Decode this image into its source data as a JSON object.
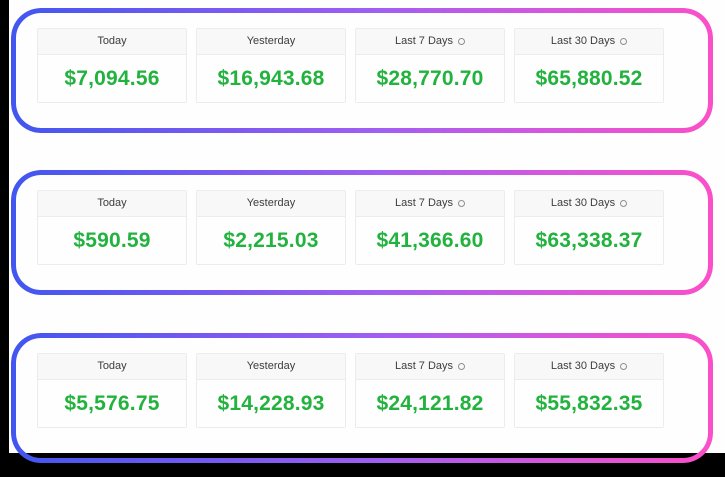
{
  "colors": {
    "frame_bg": "#000000",
    "content_bg": "#fefefe",
    "border_gradient_start": "#4156f0",
    "border_gradient_mid": "#a05ef3",
    "border_gradient_end": "#fb4fc8",
    "amount_green": "#22b23e",
    "card_header_bg": "#f8f8f8",
    "card_border": "#ececec",
    "label_text": "#3d3d3d"
  },
  "panels": [
    {
      "cards": [
        {
          "label": "Today",
          "value": "$7,094.56"
        },
        {
          "label": "Yesterday",
          "value": "$16,943.68"
        },
        {
          "label": "Last 7 Days",
          "value": "$28,770.70",
          "info_icon": "circle-info"
        },
        {
          "label": "Last 30 Days",
          "value": "$65,880.52",
          "info_icon": "circle-info"
        }
      ]
    },
    {
      "cards": [
        {
          "label": "Today",
          "value": "$590.59"
        },
        {
          "label": "Yesterday",
          "value": "$2,215.03"
        },
        {
          "label": "Last 7 Days",
          "value": "$41,366.60",
          "info_icon": "circle-info"
        },
        {
          "label": "Last 30 Days",
          "value": "$63,338.37",
          "info_icon": "circle-info"
        }
      ]
    },
    {
      "cards": [
        {
          "label": "Today",
          "value": "$5,576.75"
        },
        {
          "label": "Yesterday",
          "value": "$14,228.93"
        },
        {
          "label": "Last 7 Days",
          "value": "$24,121.82",
          "info_icon": "circle-info"
        },
        {
          "label": "Last 30 Days",
          "value": "$55,832.35",
          "info_icon": "circle-info"
        }
      ]
    }
  ]
}
